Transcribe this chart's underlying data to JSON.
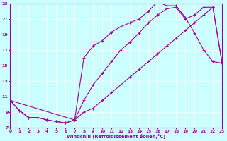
{
  "xlabel": "Windchill (Refroidissement éolien,°C)",
  "xlim": [
    0,
    23
  ],
  "ylim": [
    7,
    23
  ],
  "xticks": [
    0,
    1,
    2,
    3,
    4,
    5,
    6,
    7,
    8,
    9,
    10,
    11,
    12,
    13,
    14,
    15,
    16,
    17,
    18,
    19,
    20,
    21,
    22,
    23
  ],
  "yticks": [
    7,
    9,
    11,
    13,
    15,
    17,
    19,
    21,
    23
  ],
  "line_color": "#990099",
  "bg_color": "#ccffff",
  "grid_color": "#ffffff",
  "line1_x": [
    0,
    1,
    2,
    3,
    4,
    5,
    6,
    7,
    8,
    9,
    10,
    11,
    12,
    13,
    14,
    15,
    16,
    17,
    18,
    19,
    20,
    21,
    22,
    23
  ],
  "line1_y": [
    10.5,
    9.2,
    8.3,
    8.3,
    8.0,
    7.8,
    7.6,
    8.0,
    16.0,
    17.5,
    18.2,
    19.3,
    20.0,
    20.5,
    21.0,
    22.0,
    23.2,
    22.7,
    22.7,
    21.2,
    19.2,
    17.0,
    15.5,
    15.3
  ],
  "line2_x": [
    0,
    1,
    2,
    3,
    4,
    5,
    6,
    7,
    8,
    9,
    10,
    11,
    12,
    13,
    14,
    15,
    16,
    17,
    18,
    19,
    20,
    21,
    22,
    23
  ],
  "line2_y": [
    10.5,
    9.2,
    8.3,
    8.3,
    8.0,
    7.8,
    7.6,
    8.0,
    10.5,
    12.5,
    14.0,
    15.5,
    17.0,
    18.0,
    19.2,
    20.5,
    21.5,
    22.3,
    22.5,
    21.0,
    21.5,
    22.5,
    22.5,
    15.3
  ],
  "line3_x": [
    0,
    7,
    8,
    9,
    10,
    11,
    12,
    13,
    14,
    15,
    16,
    17,
    18,
    19,
    20,
    21,
    22,
    23
  ],
  "line3_y": [
    10.5,
    8.0,
    9.0,
    9.5,
    10.5,
    11.5,
    12.5,
    13.5,
    14.5,
    15.5,
    16.5,
    17.5,
    18.5,
    19.5,
    20.5,
    21.5,
    22.5,
    15.3
  ]
}
